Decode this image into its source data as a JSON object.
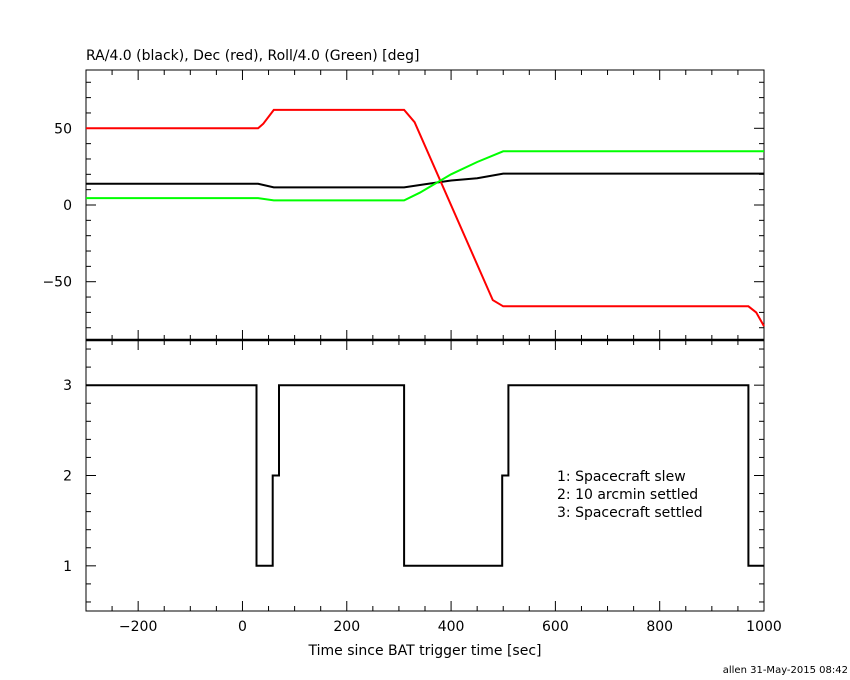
{
  "chart_data": [
    {
      "type": "line",
      "title": "RA/4.0 (black), Dec (red), Roll/4.0 (Green) [deg]",
      "xlim": [
        -300,
        1000
      ],
      "ylim": [
        -88,
        88
      ],
      "yticks": [
        -50,
        0,
        50
      ],
      "ytick_labels": [
        "−50",
        "0",
        "50"
      ],
      "series": [
        {
          "color": "#000000",
          "x": [
            -300,
            30,
            60,
            310,
            350,
            400,
            450,
            500,
            1000
          ],
          "y": [
            13.8,
            13.8,
            11.5,
            11.5,
            13.5,
            16.0,
            17.5,
            20.5,
            20.5
          ]
        },
        {
          "color": "#ff0000",
          "x": [
            -300,
            30,
            40,
            60,
            310,
            330,
            480,
            500,
            970,
            985,
            1000
          ],
          "y": [
            50,
            50,
            53,
            62,
            62,
            54,
            -62,
            -66,
            -66,
            -70,
            -79
          ]
        },
        {
          "color": "#00ff00",
          "x": [
            -300,
            30,
            60,
            310,
            340,
            400,
            450,
            500,
            1000
          ],
          "y": [
            4.5,
            4.5,
            3,
            3,
            8,
            20,
            28,
            35,
            35
          ]
        }
      ],
      "baseline": {
        "y": -88,
        "color": "#000000"
      }
    },
    {
      "type": "line",
      "xlabel": "Time since BAT trigger time [sec]",
      "xlim": [
        -300,
        1000
      ],
      "ylim": [
        0.5,
        3.5
      ],
      "yticks": [
        1,
        2,
        3
      ],
      "ytick_labels": [
        "1",
        "2",
        "3"
      ],
      "xticks": [
        -200,
        0,
        200,
        400,
        600,
        800,
        1000
      ],
      "xtick_labels": [
        "−200",
        "0",
        "200",
        "400",
        "600",
        "800",
        "1000"
      ],
      "series": [
        {
          "color": "#000000",
          "step": true,
          "x": [
            -300,
            27,
            27,
            58,
            58,
            70,
            70,
            310,
            310,
            498,
            498,
            510,
            510,
            970,
            970,
            1000
          ],
          "y": [
            3,
            3,
            1,
            1,
            2,
            2,
            3,
            3,
            1,
            1,
            2,
            2,
            3,
            3,
            1,
            1
          ]
        }
      ],
      "legend": {
        "placement": "right",
        "entries": [
          "1: Spacecraft slew",
          "2: 10 arcmin settled",
          "3: Spacecraft settled"
        ]
      }
    }
  ],
  "footer": {
    "credit": "allen 31-May-2015 08:42"
  }
}
